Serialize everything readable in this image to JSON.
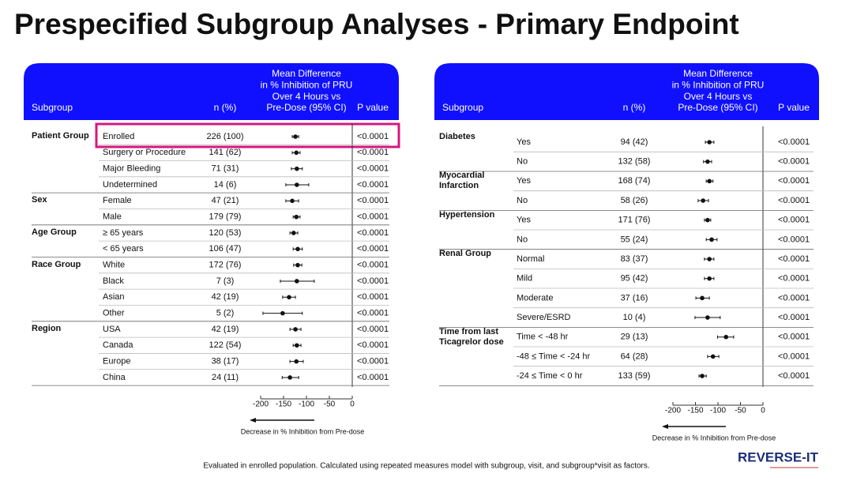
{
  "title": "Prespecified Subgroup Analyses - Primary Endpoint",
  "footnote": "Evaluated in enrolled population. Calculated using repeated measures model with subgroup, visit, and subgroup*visit as factors.",
  "logo": "REVERSE-IT",
  "chart_data": [
    {
      "type": "forest",
      "header": {
        "subgroup": "Subgroup",
        "n": "n (%)",
        "effect": [
          "Mean Difference",
          "in % Inhibition of PRU",
          "Over 4 Hours vs",
          "Pre-Dose (95% CI)"
        ],
        "p": "P value"
      },
      "xlim": [
        -200,
        0
      ],
      "xticks": [
        -200,
        -150,
        -100,
        -50,
        0
      ],
      "xlabel": "Decrease in % Inhibition from Pre-dose",
      "groups": [
        {
          "name": "Patient Group",
          "rows": [
            {
              "label": "Enrolled",
              "n": "226 (100)",
              "value": -124,
              "ci": [
                -131,
                -117
              ],
              "p": "<0.0001"
            },
            {
              "label": "Surgery or Procedure",
              "n": "141 (62)",
              "value": -122,
              "ci": [
                -131,
                -114
              ],
              "p": "<0.0001"
            },
            {
              "label": "Major Bleeding",
              "n": "71 (31)",
              "value": -121,
              "ci": [
                -133,
                -109
              ],
              "p": "<0.0001"
            },
            {
              "label": "Undetermined",
              "n": "14 (6)",
              "value": -121,
              "ci": [
                -145,
                -95
              ],
              "p": "<0.0001"
            }
          ]
        },
        {
          "name": "Sex",
          "rows": [
            {
              "label": "Female",
              "n": "47 (21)",
              "value": -131,
              "ci": [
                -145,
                -117
              ],
              "p": "<0.0001"
            },
            {
              "label": "Male",
              "n": "179 (79)",
              "value": -122,
              "ci": [
                -129,
                -114
              ],
              "p": "<0.0001"
            }
          ]
        },
        {
          "name": "Age Group",
          "rows": [
            {
              "label": "≥ 65 years",
              "n": "120 (53)",
              "value": -128,
              "ci": [
                -136,
                -119
              ],
              "p": "<0.0001"
            },
            {
              "label": "< 65 years",
              "n": "106 (47)",
              "value": -119,
              "ci": [
                -129,
                -109
              ],
              "p": "<0.0001"
            }
          ]
        },
        {
          "name": "Race Group",
          "rows": [
            {
              "label": "White",
              "n": "172 (76)",
              "value": -119,
              "ci": [
                -128,
                -110
              ],
              "p": "<0.0001"
            },
            {
              "label": "Black",
              "n": "7 (3)",
              "value": -121,
              "ci": [
                -157,
                -83
              ],
              "p": "<0.0001"
            },
            {
              "label": "Asian",
              "n": "42 (19)",
              "value": -138,
              "ci": [
                -152,
                -124
              ],
              "p": "<0.0001"
            },
            {
              "label": "Other",
              "n": "5 (2)",
              "value": -152,
              "ci": [
                -195,
                -109
              ],
              "p": "<0.0001"
            }
          ]
        },
        {
          "name": "Region",
          "rows": [
            {
              "label": "USA",
              "n": "42 (19)",
              "value": -124,
              "ci": [
                -136,
                -112
              ],
              "p": "<0.0001"
            },
            {
              "label": "Canada",
              "n": "122 (54)",
              "value": -121,
              "ci": [
                -129,
                -112
              ],
              "p": "<0.0001"
            },
            {
              "label": "Europe",
              "n": "38 (17)",
              "value": -122,
              "ci": [
                -136,
                -107
              ],
              "p": "<0.0001"
            },
            {
              "label": "China",
              "n": "24 (11)",
              "value": -136,
              "ci": [
                -153,
                -117
              ],
              "p": "<0.0001"
            }
          ]
        }
      ]
    },
    {
      "type": "forest",
      "header": {
        "subgroup": "Subgroup",
        "n": "n (%)",
        "effect": [
          "Mean Difference",
          "in % Inhibition of PRU",
          "Over 4 Hours vs",
          "Pre-Dose (95% CI)"
        ],
        "p": "P value"
      },
      "xlim": [
        -200,
        0
      ],
      "xticks": [
        -200,
        -150,
        -100,
        -50,
        0
      ],
      "xlabel": "Decrease in % Inhibition from Pre-dose",
      "groups": [
        {
          "name": "Diabetes",
          "rows": [
            {
              "label": "Yes",
              "n": "94 (42)",
              "value": -119,
              "ci": [
                -128,
                -109
              ],
              "p": "<0.0001"
            },
            {
              "label": "No",
              "n": "132 (58)",
              "value": -123,
              "ci": [
                -132,
                -114
              ],
              "p": "<0.0001"
            }
          ]
        },
        {
          "name": "Myocardial Infarction",
          "rows": [
            {
              "label": "Yes",
              "n": "168 (74)",
              "value": -119,
              "ci": [
                -126,
                -111
              ],
              "p": "<0.0001"
            },
            {
              "label": "No",
              "n": "58 (26)",
              "value": -133,
              "ci": [
                -144,
                -121
              ],
              "p": "<0.0001"
            }
          ]
        },
        {
          "name": "Hypertension",
          "rows": [
            {
              "label": "Yes",
              "n": "171 (76)",
              "value": -123,
              "ci": [
                -130,
                -116
              ],
              "p": "<0.0001"
            },
            {
              "label": "No",
              "n": "55 (24)",
              "value": -114,
              "ci": [
                -126,
                -102
              ],
              "p": "<0.0001"
            }
          ]
        },
        {
          "name": "Renal Group",
          "rows": [
            {
              "label": "Normal",
              "n": "83 (37)",
              "value": -119,
              "ci": [
                -130,
                -109
              ],
              "p": "<0.0001"
            },
            {
              "label": "Mild",
              "n": "95 (42)",
              "value": -119,
              "ci": [
                -130,
                -109
              ],
              "p": "<0.0001"
            },
            {
              "label": "Moderate",
              "n": "37 (16)",
              "value": -135,
              "ci": [
                -149,
                -119
              ],
              "p": "<0.0001"
            },
            {
              "label": "Severe/ESRD",
              "n": "10 (4)",
              "value": -123,
              "ci": [
                -151,
                -95
              ],
              "p": "<0.0001"
            }
          ]
        },
        {
          "name": "Time from last Ticagrelor dose",
          "rows": [
            {
              "label": "Time < -48 hr",
              "n": "29 (13)",
              "value": -82,
              "ci": [
                -101,
                -65
              ],
              "p": "<0.0001"
            },
            {
              "label": "-48 ≤ Time < -24 hr",
              "n": "64 (28)",
              "value": -111,
              "ci": [
                -123,
                -98
              ],
              "p": "<0.0001"
            },
            {
              "label": "-24 ≤ Time < 0 hr",
              "n": "133 (59)",
              "value": -135,
              "ci": [
                -142,
                -126
              ],
              "p": "<0.0001"
            }
          ]
        }
      ]
    }
  ]
}
